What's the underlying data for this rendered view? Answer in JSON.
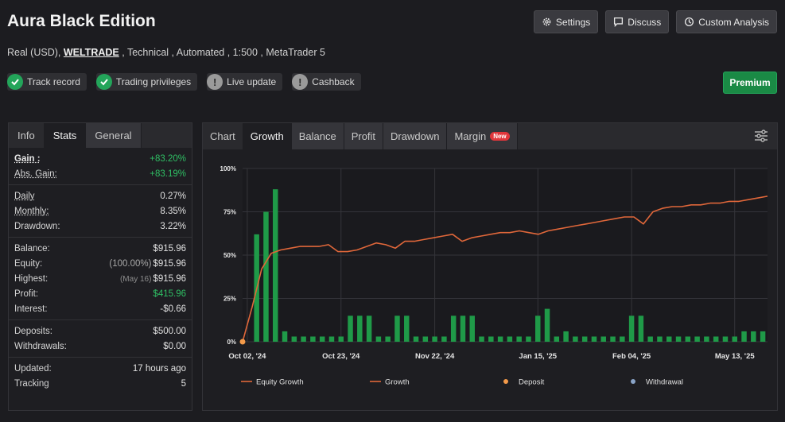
{
  "header": {
    "title": "Aura Black Edition",
    "account_type": "Real (USD), ",
    "broker": "WELTRADE",
    "details": " , Technical , Automated , 1:500 , MetaTrader 5"
  },
  "actions": {
    "settings": "Settings",
    "discuss": "Discuss",
    "custom_analysis": "Custom Analysis"
  },
  "badges": [
    {
      "label": "Track record",
      "status": "ok"
    },
    {
      "label": "Trading privileges",
      "status": "ok"
    },
    {
      "label": "Live update",
      "status": "info"
    },
    {
      "label": "Cashback",
      "status": "info"
    }
  ],
  "premium_label": "Premium",
  "stats_tabs": [
    "Info",
    "Stats",
    "General"
  ],
  "stats": {
    "gain": {
      "label": "Gain :",
      "value": "+83.20%"
    },
    "abs_gain": {
      "label": "Abs. Gain:",
      "value": "+83.19%"
    },
    "daily": {
      "label": "Daily",
      "value": "0.27%"
    },
    "monthly": {
      "label": "Monthly:",
      "value": "8.35%"
    },
    "drawdown": {
      "label": "Drawdown:",
      "value": "3.22%"
    },
    "balance": {
      "label": "Balance:",
      "value": "$915.96"
    },
    "equity": {
      "label": "Equity:",
      "prefix": "(100.00%)",
      "value": "$915.96"
    },
    "highest": {
      "label": "Highest:",
      "prefix": "(May 16)",
      "value": "$915.96"
    },
    "profit": {
      "label": "Profit:",
      "value": "$415.96"
    },
    "interest": {
      "label": "Interest:",
      "value": "-$0.66"
    },
    "deposits": {
      "label": "Deposits:",
      "value": "$500.00"
    },
    "withdrawals": {
      "label": "Withdrawals:",
      "value": "$0.00"
    },
    "updated": {
      "label": "Updated:",
      "value": "17 hours ago"
    },
    "tracking": {
      "label": "Tracking",
      "value": "5"
    }
  },
  "chart_tabs": [
    "Chart",
    "Growth",
    "Balance",
    "Profit",
    "Drawdown",
    "Margin"
  ],
  "new_label": "New",
  "colors": {
    "line": "#e0673a",
    "bar": "#1f9a48",
    "deposit": "#f39a4a",
    "withdrawal": "#8aa4c8"
  },
  "chart_data": {
    "type": "bar+line",
    "y_ticks": [
      "0%",
      "25%",
      "50%",
      "75%",
      "100%"
    ],
    "ylim": [
      0,
      100
    ],
    "x_ticks": [
      "Oct 02, '24",
      "Oct 23, '24",
      "Nov 22, '24",
      "Jan 15, '25",
      "Feb 04, '25",
      "May 13, '25"
    ],
    "legend": [
      "Equity Growth",
      "Growth",
      "Deposit",
      "Withdrawal"
    ],
    "legend_placement": "bottom",
    "bars": [
      0,
      62,
      75,
      88,
      6,
      3,
      3,
      3,
      3,
      3,
      3,
      15,
      15,
      15,
      3,
      3,
      15,
      15,
      3,
      3,
      3,
      3,
      15,
      15,
      15,
      3,
      3,
      3,
      3,
      3,
      3,
      15,
      19,
      3,
      6,
      3,
      3,
      3,
      3,
      3,
      3,
      15,
      15,
      3,
      3,
      3,
      3,
      3,
      3,
      3,
      3,
      3,
      3,
      6,
      6,
      6
    ],
    "growth_line": [
      0,
      20,
      42,
      51,
      53,
      54,
      55,
      55,
      55,
      56,
      52,
      52,
      53,
      55,
      57,
      56,
      54,
      58,
      58,
      59,
      60,
      61,
      62,
      58,
      60,
      61,
      62,
      63,
      63,
      64,
      63,
      62,
      64,
      65,
      66,
      67,
      68,
      69,
      70,
      71,
      72,
      72,
      68,
      75,
      77,
      78,
      78,
      79,
      79,
      80,
      80,
      81,
      81,
      82,
      83,
      84
    ],
    "deposit_point": {
      "x_index": 0,
      "value": 0
    }
  },
  "icons": {
    "settings": "gear-icon",
    "discuss": "chat-icon",
    "custom": "clock-icon",
    "filter": "sliders-icon"
  }
}
